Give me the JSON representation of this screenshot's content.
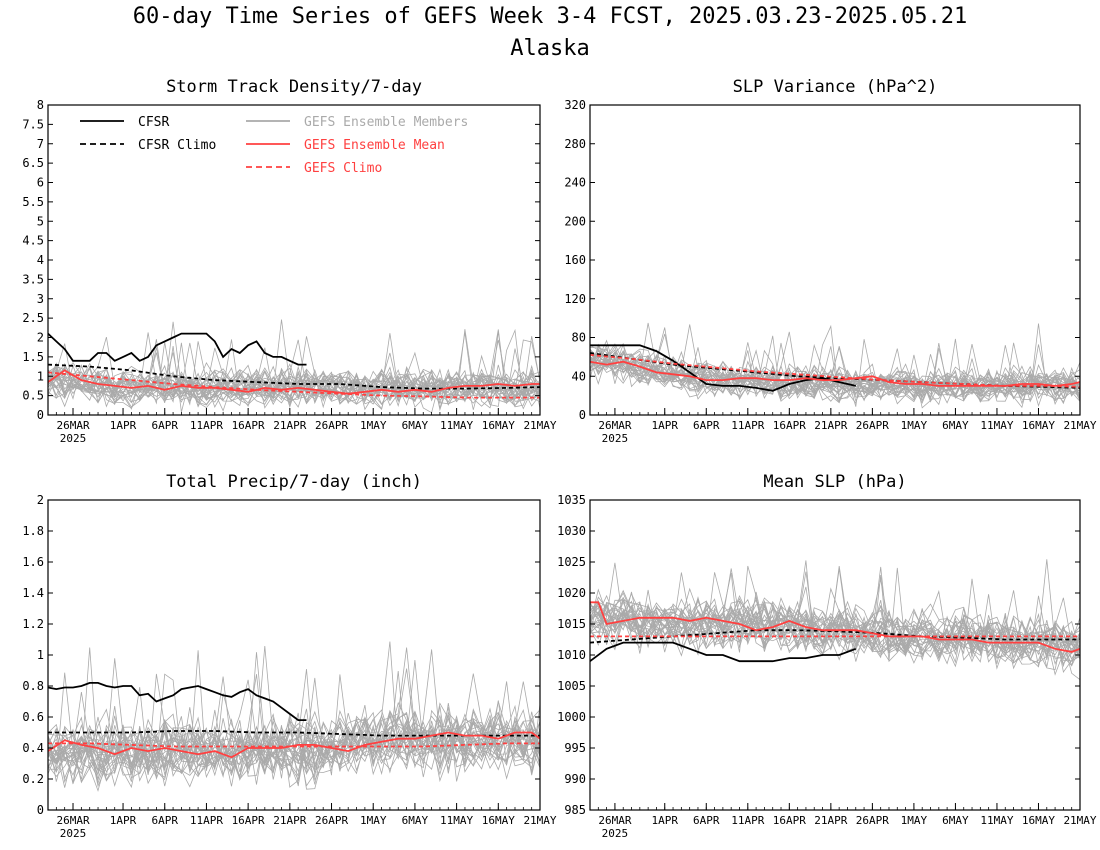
{
  "page": {
    "title_line1": "60-day Time Series of GEFS Week 3-4 FCST, 2025.03.23-2025.05.21",
    "title_line2": "Alaska"
  },
  "x_axis": {
    "ticks": [
      {
        "day": 3,
        "label": "26MAR",
        "sublabel": "2025"
      },
      {
        "day": 9,
        "label": "1APR"
      },
      {
        "day": 14,
        "label": "6APR"
      },
      {
        "day": 19,
        "label": "11APR"
      },
      {
        "day": 24,
        "label": "16APR"
      },
      {
        "day": 29,
        "label": "21APR"
      },
      {
        "day": 34,
        "label": "26APR"
      },
      {
        "day": 39,
        "label": "1MAY"
      },
      {
        "day": 44,
        "label": "6MAY"
      },
      {
        "day": 49,
        "label": "11MAY"
      },
      {
        "day": 54,
        "label": "16MAY"
      },
      {
        "day": 59,
        "label": "21MAY"
      }
    ],
    "xlim": [
      0,
      59
    ]
  },
  "legend": [
    {
      "label": "CFSR",
      "color": "#000000",
      "dash": false
    },
    {
      "label": "CFSR Climo",
      "color": "#000000",
      "dash": true
    },
    {
      "label": "GEFS Ensemble Members",
      "color": "#aaaaaa",
      "dash": false
    },
    {
      "label": "GEFS Ensemble Mean",
      "color": "#ff4040",
      "dash": false
    },
    {
      "label": "GEFS Climo",
      "color": "#ff4040",
      "dash": true
    }
  ],
  "colors": {
    "cfsr": "#000000",
    "members": "#aaaaaa",
    "gefs": "#ff4040"
  },
  "chart_data": [
    {
      "type": "line",
      "title": "Storm Track Density/7-day",
      "ylim": [
        0,
        8
      ],
      "yticks": [
        "0",
        "0.5",
        "1",
        "1.5",
        "2",
        "2.5",
        "3",
        "3.5",
        "4",
        "4.5",
        "5",
        "5.5",
        "6",
        "6.5",
        "7",
        "7.5",
        "8"
      ],
      "member_count": 30,
      "series": [
        {
          "name": "CFSR",
          "x": [
            0,
            1,
            2,
            3,
            4,
            5,
            6,
            7,
            8,
            9,
            10,
            11,
            12,
            13,
            14,
            15,
            16,
            17,
            18,
            19,
            20,
            21,
            22,
            23,
            24,
            25,
            26,
            27,
            28,
            29,
            30,
            31
          ],
          "values": [
            2.1,
            1.9,
            1.7,
            1.4,
            1.4,
            1.4,
            1.6,
            1.6,
            1.4,
            1.5,
            1.6,
            1.4,
            1.5,
            1.8,
            1.9,
            2.0,
            2.1,
            2.1,
            2.1,
            2.1,
            1.9,
            1.5,
            1.7,
            1.6,
            1.8,
            1.9,
            1.6,
            1.5,
            1.5,
            1.4,
            1.3,
            1.3
          ]
        },
        {
          "name": "CFSR Climo",
          "x": [
            0,
            5,
            10,
            15,
            20,
            25,
            30,
            35,
            40,
            45,
            50,
            55,
            59
          ],
          "values": [
            1.3,
            1.25,
            1.15,
            1.0,
            0.9,
            0.85,
            0.8,
            0.8,
            0.72,
            0.68,
            0.68,
            0.7,
            0.72
          ]
        },
        {
          "name": "GEFS Ensemble Mean",
          "x": [
            0,
            2,
            4,
            6,
            8,
            10,
            12,
            14,
            16,
            18,
            20,
            22,
            24,
            26,
            28,
            30,
            32,
            34,
            36,
            38,
            40,
            42,
            44,
            46,
            48,
            50,
            52,
            54,
            56,
            58,
            59
          ],
          "values": [
            0.85,
            1.15,
            0.9,
            0.8,
            0.75,
            0.7,
            0.75,
            0.65,
            0.75,
            0.7,
            0.7,
            0.65,
            0.6,
            0.7,
            0.65,
            0.7,
            0.65,
            0.6,
            0.55,
            0.6,
            0.65,
            0.6,
            0.65,
            0.6,
            0.7,
            0.75,
            0.75,
            0.8,
            0.75,
            0.8,
            0.8
          ]
        },
        {
          "name": "GEFS Climo",
          "x": [
            0,
            5,
            10,
            15,
            20,
            25,
            30,
            35,
            40,
            45,
            50,
            55,
            59
          ],
          "values": [
            1.1,
            1.0,
            0.9,
            0.8,
            0.72,
            0.65,
            0.6,
            0.55,
            0.5,
            0.48,
            0.45,
            0.45,
            0.45
          ]
        }
      ],
      "member_center": [
        0.9,
        0.9,
        0.85,
        0.85,
        0.8,
        0.8,
        0.8,
        0.75,
        0.75,
        0.75,
        0.75,
        0.7,
        0.7,
        0.7,
        0.7,
        0.7,
        0.7,
        0.7,
        0.7,
        0.7,
        0.7,
        0.7,
        0.7,
        0.7,
        0.7,
        0.7,
        0.7,
        0.7,
        0.7,
        0.7,
        0.7,
        0.7,
        0.7,
        0.7,
        0.7,
        0.7,
        0.7,
        0.7,
        0.7,
        0.7,
        0.7,
        0.7,
        0.7,
        0.7,
        0.7,
        0.7,
        0.7,
        0.7,
        0.7,
        0.7,
        0.7,
        0.7,
        0.7,
        0.7,
        0.7,
        0.7,
        0.7,
        0.7,
        0.7,
        0.7
      ],
      "member_spread": 0.7
    },
    {
      "type": "line",
      "title": "SLP Variance (hPa^2)",
      "ylim": [
        0,
        320
      ],
      "yticks": [
        "0",
        "40",
        "80",
        "120",
        "160",
        "200",
        "240",
        "280",
        "320"
      ],
      "member_count": 30,
      "series": [
        {
          "name": "CFSR",
          "x": [
            0,
            2,
            4,
            6,
            8,
            10,
            12,
            14,
            16,
            18,
            20,
            22,
            24,
            26,
            28,
            30,
            32
          ],
          "values": [
            72,
            72,
            72,
            72,
            66,
            56,
            44,
            32,
            30,
            30,
            28,
            25,
            32,
            36,
            38,
            34,
            30
          ]
        },
        {
          "name": "CFSR Climo",
          "x": [
            0,
            5,
            10,
            15,
            20,
            25,
            30,
            35,
            40,
            45,
            50,
            55,
            59
          ],
          "values": [
            64,
            58,
            52,
            48,
            44,
            40,
            38,
            36,
            34,
            32,
            30,
            29,
            28
          ]
        },
        {
          "name": "GEFS Ensemble Mean",
          "x": [
            0,
            2,
            4,
            6,
            8,
            10,
            12,
            14,
            16,
            18,
            20,
            22,
            24,
            26,
            28,
            30,
            32,
            34,
            36,
            38,
            40,
            42,
            44,
            46,
            48,
            50,
            52,
            54,
            56,
            58,
            59
          ],
          "values": [
            55,
            52,
            55,
            50,
            44,
            42,
            40,
            36,
            36,
            38,
            38,
            36,
            36,
            38,
            36,
            36,
            38,
            40,
            34,
            32,
            32,
            30,
            30,
            30,
            30,
            30,
            32,
            32,
            30,
            32,
            34
          ]
        },
        {
          "name": "GEFS Climo",
          "x": [
            0,
            5,
            10,
            15,
            20,
            25,
            30,
            35,
            40,
            45,
            50,
            55,
            59
          ],
          "values": [
            62,
            58,
            53,
            49,
            45,
            42,
            39,
            36,
            34,
            32,
            30,
            30,
            29
          ]
        }
      ],
      "member_center": [
        58,
        57,
        56,
        55,
        53,
        51,
        49,
        47,
        45,
        43,
        42,
        41,
        40,
        39,
        38,
        37,
        36,
        36,
        35,
        35,
        34,
        34,
        34,
        34,
        33,
        33,
        33,
        33,
        32,
        32,
        32,
        32,
        32,
        31,
        31,
        31,
        31,
        31,
        31,
        30,
        30,
        30,
        30,
        30,
        30,
        30,
        30,
        30,
        30,
        30,
        30,
        30,
        30,
        30,
        30,
        30,
        30,
        30,
        30,
        30
      ],
      "member_spread": 26
    },
    {
      "type": "line",
      "title": "Total Precip/7-day (inch)",
      "ylim": [
        0,
        2
      ],
      "yticks": [
        "0",
        "0.2",
        "0.4",
        "0.6",
        "0.8",
        "1",
        "1.2",
        "1.4",
        "1.6",
        "1.8",
        "2"
      ],
      "member_count": 30,
      "series": [
        {
          "name": "CFSR",
          "x": [
            0,
            1,
            2,
            3,
            4,
            5,
            6,
            7,
            8,
            9,
            10,
            11,
            12,
            13,
            14,
            15,
            16,
            17,
            18,
            19,
            20,
            21,
            22,
            23,
            24,
            25,
            26,
            27,
            28,
            29,
            30,
            31
          ],
          "values": [
            0.79,
            0.78,
            0.79,
            0.79,
            0.8,
            0.82,
            0.82,
            0.8,
            0.79,
            0.8,
            0.8,
            0.74,
            0.75,
            0.7,
            0.72,
            0.74,
            0.78,
            0.79,
            0.8,
            0.78,
            0.76,
            0.74,
            0.73,
            0.76,
            0.78,
            0.74,
            0.72,
            0.7,
            0.66,
            0.62,
            0.58,
            0.58
          ]
        },
        {
          "name": "CFSR Climo",
          "x": [
            0,
            5,
            10,
            15,
            20,
            25,
            30,
            35,
            40,
            45,
            50,
            55,
            59
          ],
          "values": [
            0.5,
            0.5,
            0.5,
            0.51,
            0.51,
            0.5,
            0.5,
            0.49,
            0.48,
            0.48,
            0.48,
            0.48,
            0.48
          ]
        },
        {
          "name": "GEFS Ensemble Mean",
          "x": [
            0,
            2,
            4,
            6,
            8,
            10,
            12,
            14,
            16,
            18,
            20,
            22,
            24,
            26,
            28,
            30,
            32,
            34,
            36,
            38,
            40,
            42,
            44,
            46,
            48,
            50,
            52,
            54,
            56,
            58,
            59
          ],
          "values": [
            0.38,
            0.45,
            0.42,
            0.4,
            0.36,
            0.4,
            0.38,
            0.4,
            0.38,
            0.36,
            0.38,
            0.34,
            0.4,
            0.4,
            0.4,
            0.42,
            0.42,
            0.4,
            0.38,
            0.42,
            0.44,
            0.46,
            0.46,
            0.48,
            0.5,
            0.48,
            0.48,
            0.46,
            0.5,
            0.5,
            0.46
          ]
        },
        {
          "name": "GEFS Climo",
          "x": [
            0,
            5,
            10,
            15,
            20,
            25,
            30,
            35,
            40,
            45,
            50,
            55,
            59
          ],
          "values": [
            0.43,
            0.43,
            0.42,
            0.41,
            0.41,
            0.41,
            0.41,
            0.41,
            0.41,
            0.41,
            0.42,
            0.43,
            0.43
          ]
        }
      ],
      "member_center": [
        0.38,
        0.38,
        0.38,
        0.38,
        0.38,
        0.38,
        0.38,
        0.38,
        0.38,
        0.38,
        0.38,
        0.38,
        0.38,
        0.38,
        0.38,
        0.38,
        0.38,
        0.38,
        0.38,
        0.38,
        0.38,
        0.38,
        0.38,
        0.38,
        0.38,
        0.38,
        0.38,
        0.38,
        0.38,
        0.38,
        0.38,
        0.38,
        0.38,
        0.38,
        0.4,
        0.42,
        0.44,
        0.46,
        0.46,
        0.46,
        0.46,
        0.46,
        0.46,
        0.46,
        0.46,
        0.46,
        0.46,
        0.46,
        0.46,
        0.46,
        0.46,
        0.46,
        0.46,
        0.46,
        0.46,
        0.46,
        0.46,
        0.46,
        0.46,
        0.46
      ],
      "member_spread": 0.3
    },
    {
      "type": "line",
      "title": "Mean SLP (hPa)",
      "ylim": [
        985,
        1035
      ],
      "yticks": [
        "985",
        "990",
        "995",
        "1000",
        "1005",
        "1010",
        "1015",
        "1020",
        "1025",
        "1030",
        "1035"
      ],
      "member_count": 30,
      "series": [
        {
          "name": "CFSR",
          "x": [
            0,
            2,
            4,
            6,
            8,
            10,
            12,
            14,
            16,
            18,
            20,
            22,
            24,
            26,
            28,
            30,
            32
          ],
          "values": [
            1009,
            1011,
            1012,
            1012,
            1012,
            1012,
            1011,
            1010,
            1010,
            1009,
            1009,
            1009,
            1009.5,
            1009.5,
            1010,
            1010,
            1011
          ]
        },
        {
          "name": "CFSR Climo",
          "x": [
            0,
            5,
            10,
            15,
            20,
            25,
            30,
            35,
            40,
            45,
            50,
            55,
            59
          ],
          "values": [
            1012,
            1012.5,
            1013,
            1013.5,
            1014,
            1014,
            1013.8,
            1013.5,
            1013,
            1012.8,
            1012.5,
            1012.5,
            1012.5
          ]
        },
        {
          "name": "GEFS Ensemble Mean",
          "x": [
            0,
            1,
            2,
            4,
            6,
            8,
            10,
            12,
            14,
            16,
            18,
            20,
            22,
            24,
            26,
            28,
            30,
            32,
            34,
            36,
            38,
            40,
            42,
            44,
            46,
            48,
            50,
            52,
            54,
            56,
            58,
            59
          ],
          "values": [
            1018.5,
            1018.5,
            1015,
            1015.5,
            1016,
            1016,
            1016,
            1015.5,
            1016,
            1015.5,
            1015,
            1014,
            1014.5,
            1015.5,
            1014.5,
            1014,
            1014,
            1014,
            1013.5,
            1013,
            1013,
            1013,
            1012.5,
            1012.5,
            1012.5,
            1012,
            1012,
            1012,
            1012,
            1011,
            1010.5,
            1011
          ]
        },
        {
          "name": "GEFS Climo",
          "x": [
            0,
            5,
            10,
            15,
            20,
            25,
            30,
            35,
            40,
            45,
            50,
            55,
            59
          ],
          "values": [
            1013,
            1013,
            1013,
            1013,
            1013,
            1013,
            1013,
            1013,
            1013,
            1013,
            1013,
            1013,
            1013
          ]
        }
      ],
      "member_center": [
        1016,
        1016,
        1016,
        1016,
        1016,
        1015.8,
        1015.6,
        1015.4,
        1015.2,
        1015,
        1015,
        1015,
        1015,
        1015,
        1015,
        1015,
        1015,
        1015,
        1015,
        1015,
        1015,
        1015,
        1015,
        1015,
        1014.5,
        1014.5,
        1014.5,
        1014,
        1014,
        1014,
        1014,
        1014,
        1014,
        1013.5,
        1013.5,
        1013.5,
        1013.5,
        1013,
        1013,
        1013,
        1013,
        1013,
        1013,
        1013,
        1013,
        1013,
        1012.5,
        1012.5,
        1012.5,
        1012.5,
        1012.5,
        1012,
        1012,
        1012,
        1012,
        1012,
        1012,
        1011.5,
        1011.5,
        1011.5
      ],
      "member_spread": 6
    }
  ]
}
